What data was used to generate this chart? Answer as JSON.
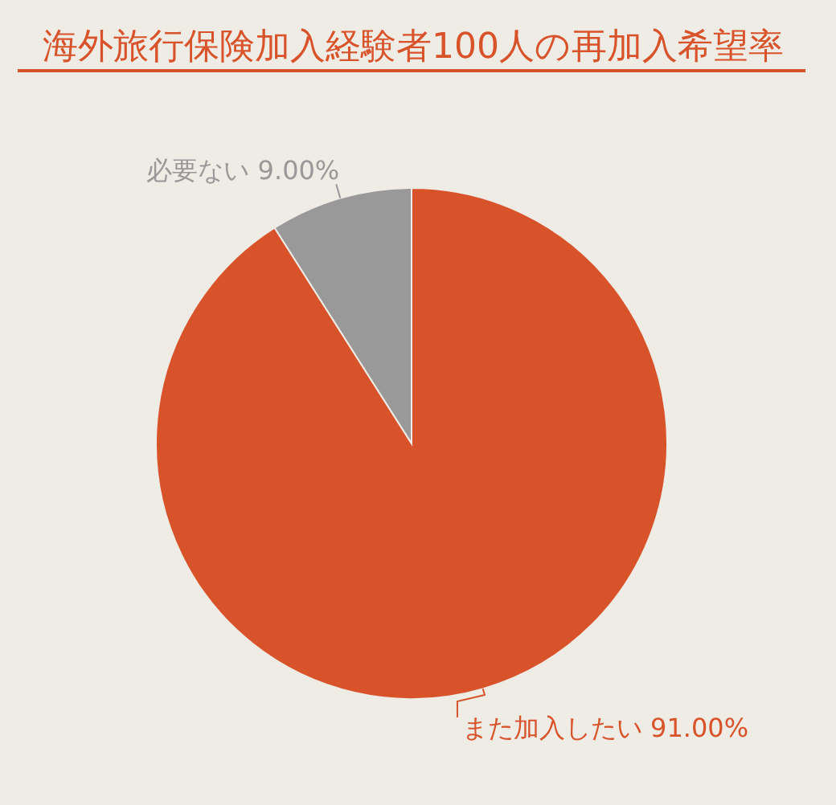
{
  "chart_data": {
    "type": "pie",
    "title": "海外旅行保険加入経験者100人の再加入希望率",
    "categories": [
      "また加入したい",
      "必要ない"
    ],
    "values": [
      91,
      9
    ],
    "colors": [
      "#d9532a",
      "#999999"
    ],
    "value_labels": [
      "91.00%",
      "9.00%"
    ]
  }
}
